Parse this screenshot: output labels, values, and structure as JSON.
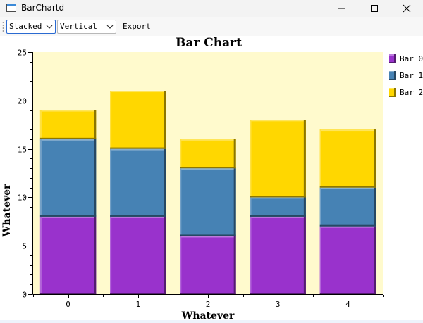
{
  "window": {
    "title": "BarChartd",
    "controls": {
      "minimize_icon": "minimize-icon",
      "maximize_icon": "maximize-icon",
      "close_icon": "close-icon"
    }
  },
  "toolbar": {
    "mode_combo": {
      "value": "Stacked"
    },
    "orientation_combo": {
      "value": "Vertical"
    },
    "export_label": "Export"
  },
  "chart_data": {
    "type": "bar",
    "stacked": true,
    "orientation": "vertical",
    "title": "Bar Chart",
    "xlabel": "Whatever",
    "ylabel": "Whatever",
    "categories": [
      "0",
      "1",
      "2",
      "3",
      "4"
    ],
    "ylim": [
      0,
      25
    ],
    "yticks": [
      "0",
      "5",
      "10",
      "15",
      "20",
      "25"
    ],
    "legend_position": "right",
    "plot_background": "#fffacd",
    "series": [
      {
        "name": "Bar 0",
        "color": "#9932cc",
        "values": [
          8,
          8,
          6,
          8,
          7
        ]
      },
      {
        "name": "Bar 1",
        "color": "#4682b4",
        "values": [
          8,
          7,
          7,
          2,
          4
        ]
      },
      {
        "name": "Bar 2",
        "color": "#ffd700",
        "values": [
          3,
          6,
          3,
          8,
          6
        ]
      }
    ]
  }
}
